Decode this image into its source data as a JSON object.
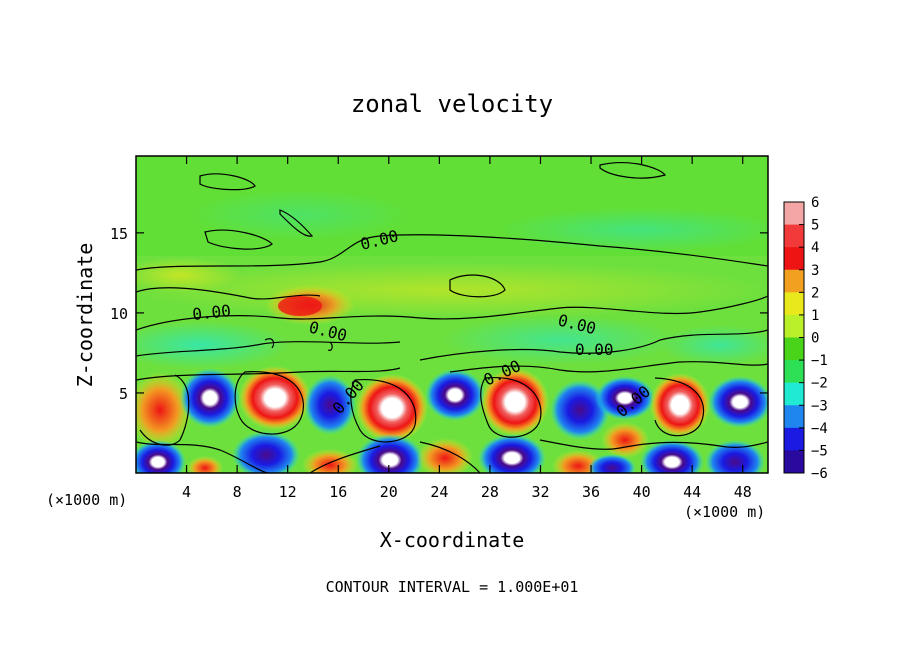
{
  "chart_data": {
    "type": "heatmap",
    "title": "zonal velocity",
    "xlabel": "X-coordinate",
    "ylabel": "Z-coordinate",
    "x_unit_left": "(×1000 m)",
    "x_unit_right": "(×1000 m)",
    "xlim": [
      0,
      50
    ],
    "ylim": [
      0,
      19.8
    ],
    "x_ticks": [
      4,
      8,
      12,
      16,
      20,
      24,
      28,
      32,
      36,
      40,
      44,
      48
    ],
    "y_ticks": [
      5,
      10,
      15
    ],
    "colorbar": {
      "levels": [
        6,
        5,
        4,
        3,
        2,
        1,
        0,
        -1,
        -2,
        -3,
        -4,
        -5,
        -6
      ],
      "colors": [
        "#f4a6a6",
        "#f23a3a",
        "#ee1414",
        "#f2a020",
        "#e8e81c",
        "#b9f02a",
        "#49d419",
        "#2ee055",
        "#21ead2",
        "#1f86f0",
        "#1a1ae2",
        "#2a0a9e",
        "#7a0f9a"
      ]
    },
    "contour_label": "0.00",
    "contour_labels_count": 8,
    "footnote": "CONTOUR INTERVAL = 1.000E+01",
    "colors": {
      "positive": "#f01c1c",
      "negative": "#1a2ae0",
      "background": "#5ee03a"
    }
  }
}
